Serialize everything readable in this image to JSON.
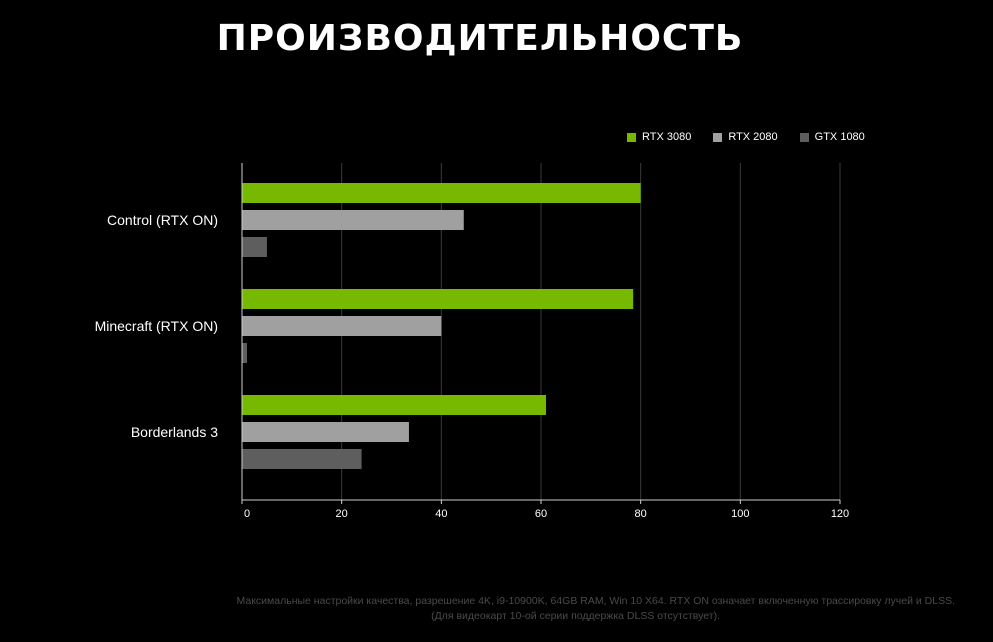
{
  "chart_data": {
    "type": "bar",
    "orientation": "horizontal",
    "title": "ПРОИЗВОДИТЕЛЬНОСТЬ",
    "categories": [
      "Control (RTX ON)",
      "Minecraft (RTX ON)",
      "Borderlands 3"
    ],
    "series": [
      {
        "name": "RTX 3080",
        "color": "#76b900",
        "values": [
          80,
          78.5,
          61
        ]
      },
      {
        "name": "RTX 2080",
        "color": "#a0a0a0",
        "values": [
          44.5,
          40,
          33.5
        ]
      },
      {
        "name": "GTX 1080",
        "color": "#5e5e5e",
        "values": [
          5,
          1,
          24
        ]
      }
    ],
    "xlim": [
      0,
      120
    ],
    "xticks": [
      0,
      20,
      40,
      60,
      80,
      100,
      120
    ],
    "xlabel": "",
    "ylabel": "",
    "grid": true,
    "legend_position": "top-right"
  },
  "footnote": {
    "line1": "Максимальные настройки качества, разрешение 4K, i9-10900K, 64GB RAM, Win 10 X64. RTX ON означает включенную трассировку лучей и DLSS.",
    "line2": "(Для видеокарт 10-ой серии поддержка DLSS отсутствует)."
  }
}
